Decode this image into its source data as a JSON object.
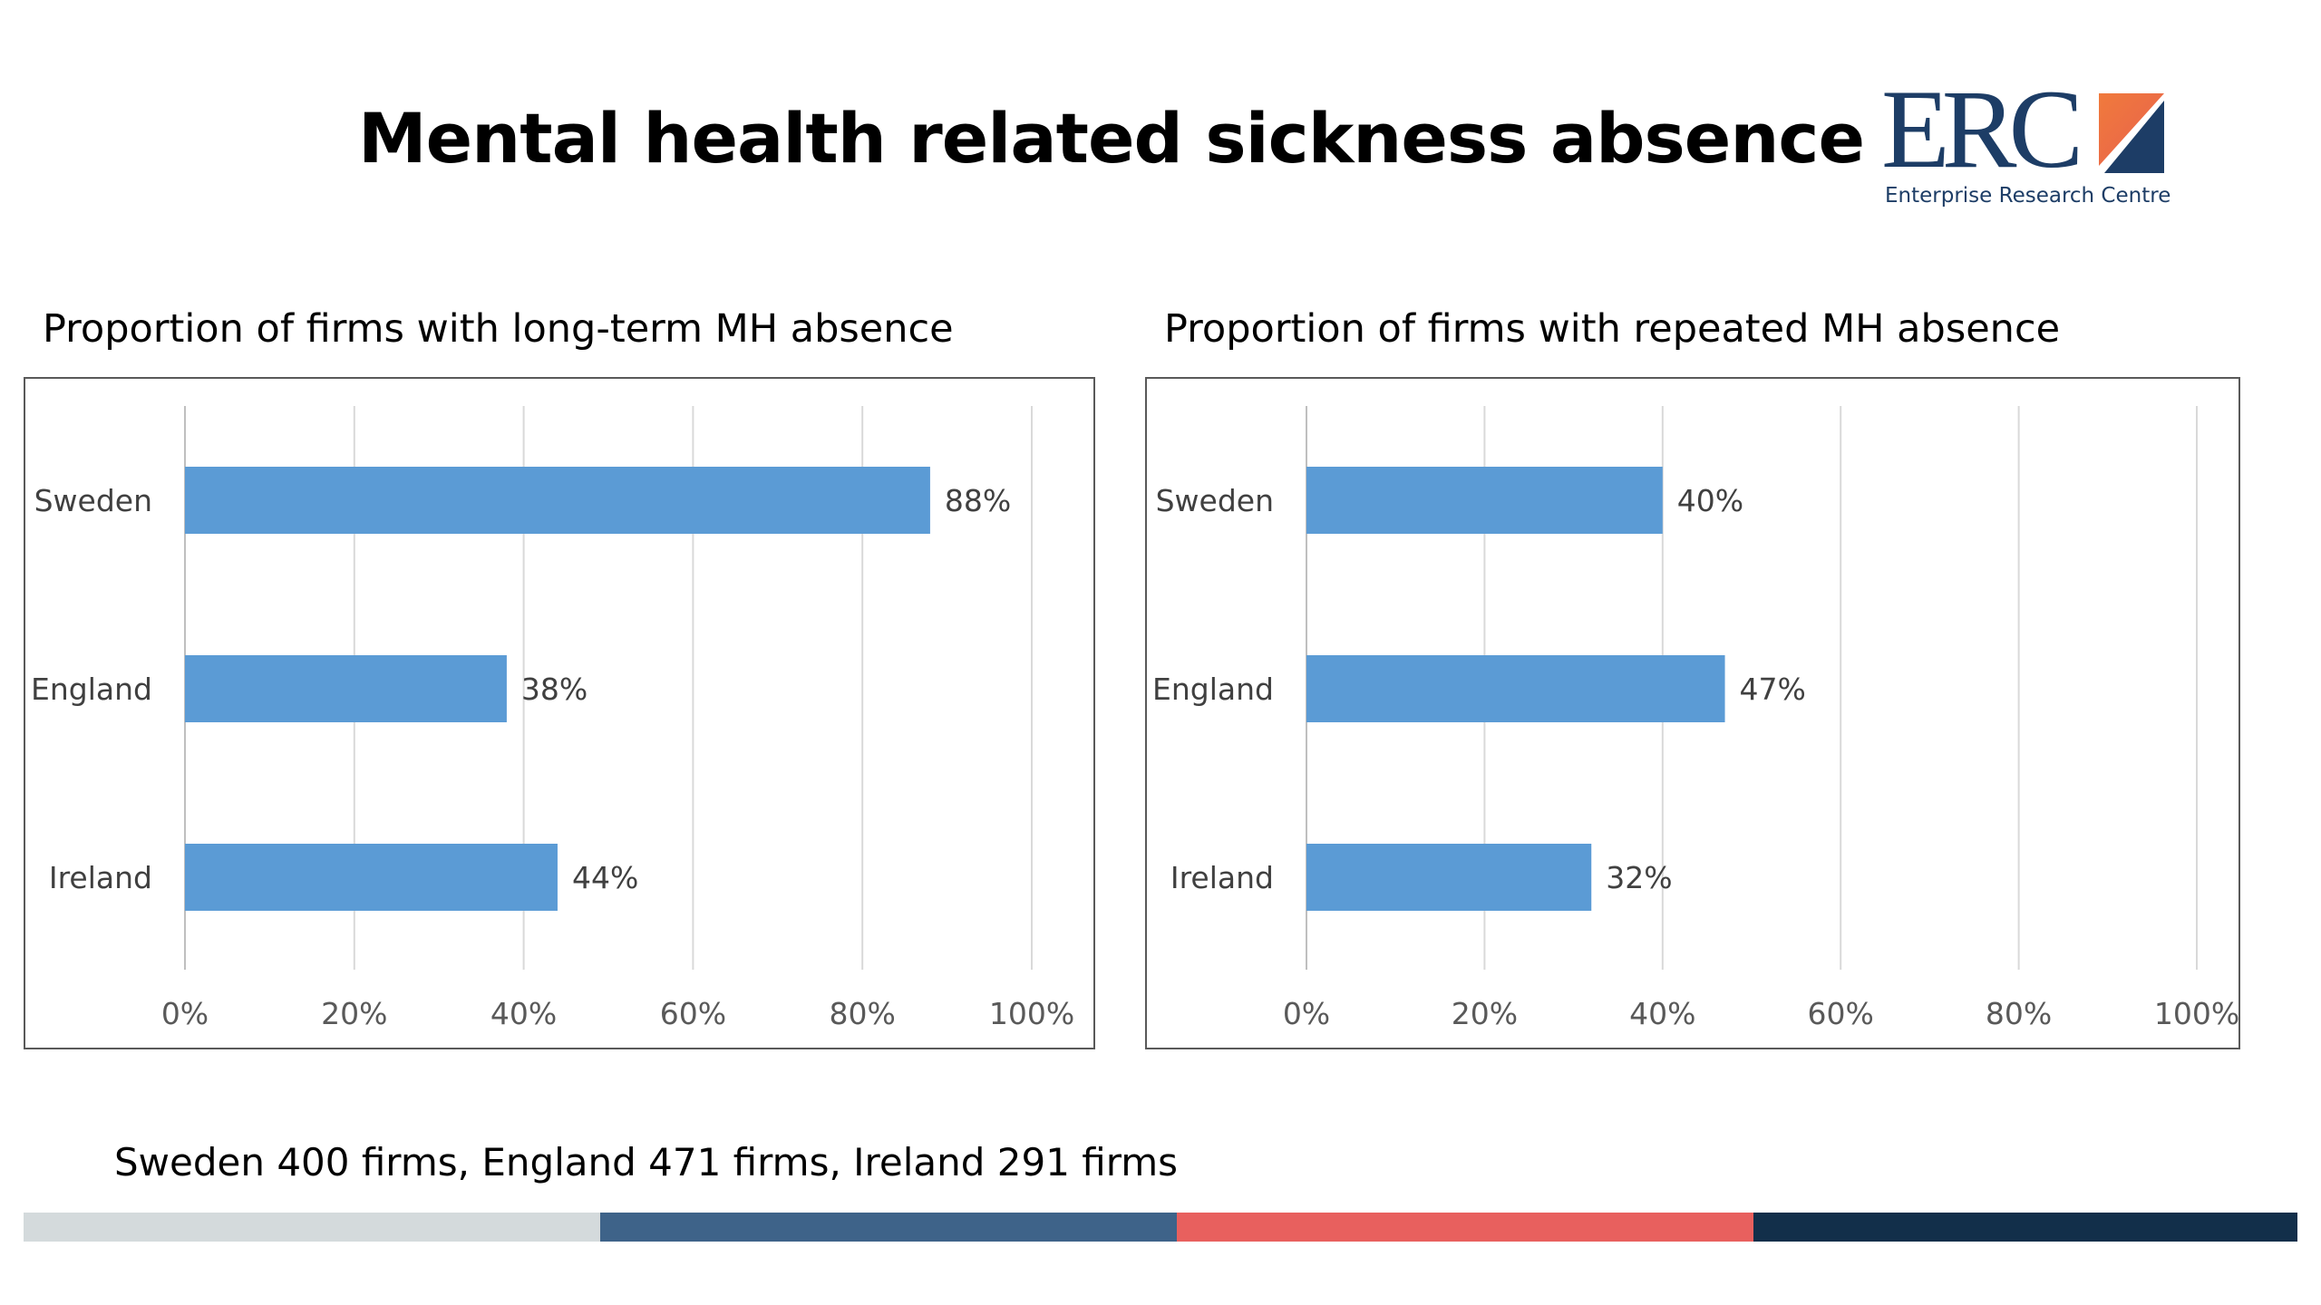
{
  "page": {
    "title": "Mental health related sickness absence",
    "footnote": "Sweden 400 firms, England 471 firms, Ireland 291 firms"
  },
  "logo": {
    "wordmark": "ERC",
    "subtitle": "Enterprise Research Centre",
    "brand_color": "#1d3d66",
    "accent_colors": [
      "#f07a3c",
      "#e8604e"
    ]
  },
  "stripe_colors": [
    "#d4dadc",
    "#3e6389",
    "#e8605e",
    "#122f4a"
  ],
  "chart_data": [
    {
      "type": "bar",
      "orientation": "horizontal",
      "title": "Proportion of firms with long-term MH absence",
      "categories": [
        "Sweden",
        "England",
        "Ireland"
      ],
      "values": [
        88,
        38,
        44
      ],
      "value_labels": [
        "88%",
        "38%",
        "44%"
      ],
      "xlim": [
        0,
        100
      ],
      "ticks": [
        0,
        20,
        40,
        60,
        80,
        100
      ],
      "tick_labels": [
        "0%",
        "20%",
        "40%",
        "60%",
        "80%",
        "100%"
      ],
      "bar_color": "#5b9bd5",
      "grid": true
    },
    {
      "type": "bar",
      "orientation": "horizontal",
      "title": "Proportion of firms with repeated MH absence",
      "categories": [
        "Sweden",
        "England",
        "Ireland"
      ],
      "values": [
        40,
        47,
        32
      ],
      "value_labels": [
        "40%",
        "47%",
        "32%"
      ],
      "xlim": [
        0,
        100
      ],
      "ticks": [
        0,
        20,
        40,
        60,
        80,
        100
      ],
      "tick_labels": [
        "0%",
        "20%",
        "40%",
        "60%",
        "80%",
        "100%"
      ],
      "bar_color": "#5b9bd5",
      "grid": true
    }
  ]
}
